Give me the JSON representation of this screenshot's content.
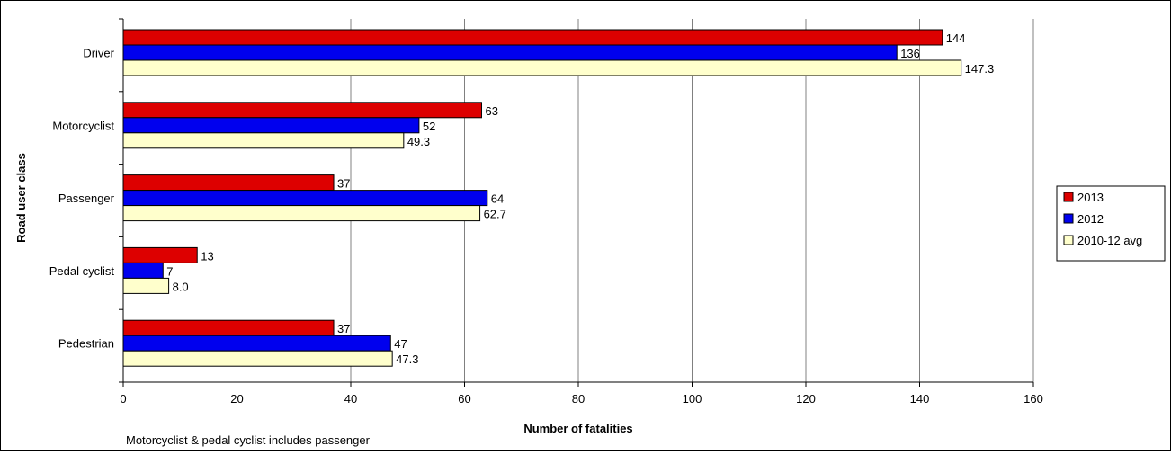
{
  "chart_data": {
    "type": "bar",
    "orientation": "horizontal",
    "categories": [
      "Driver",
      "Motorcyclist",
      "Passenger",
      "Pedal cyclist",
      "Pedestrian"
    ],
    "series": [
      {
        "name": "2013",
        "color": "#dd0000",
        "values": [
          144,
          63,
          37,
          13,
          37
        ],
        "labels": [
          "144",
          "63",
          "37",
          "13",
          "37"
        ]
      },
      {
        "name": "2012",
        "color": "#0000ee",
        "values": [
          136,
          52,
          64,
          7,
          47
        ],
        "labels": [
          "136",
          "52",
          "64",
          "7",
          "47"
        ]
      },
      {
        "name": "2010-12 avg",
        "color": "#ffffcc",
        "values": [
          147.3,
          49.3,
          62.7,
          8.0,
          47.3
        ],
        "labels": [
          "147.3",
          "49.3",
          "62.7",
          "8.0",
          "47.3"
        ]
      }
    ],
    "xlabel": "Number of fatalities",
    "ylabel": "Road user class",
    "xlim": [
      0,
      160
    ],
    "xticks": [
      "0",
      "20",
      "40",
      "60",
      "80",
      "100",
      "120",
      "140",
      "160"
    ],
    "grid": "vertical",
    "legend": "right",
    "note": "Motorcyclist & pedal cyclist includes passenger"
  }
}
